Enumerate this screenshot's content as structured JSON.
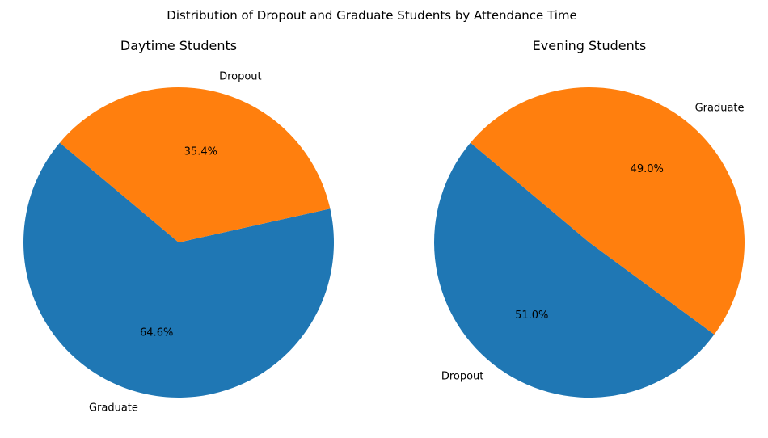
{
  "colors": {
    "blue": "#1f77b4",
    "orange": "#ff7f0e"
  },
  "chart_data": {
    "type": "pie",
    "title": "Distribution of Dropout and Graduate Students by Attendance Time",
    "charts": [
      {
        "id": "daytime",
        "title": "Daytime Students",
        "start_angle_deg": 140,
        "slices": [
          {
            "label": "Graduate",
            "percent": 64.6,
            "percent_label": "64.6%",
            "color": "#1f77b4"
          },
          {
            "label": "Dropout",
            "percent": 35.4,
            "percent_label": "35.4%",
            "color": "#ff7f0e"
          }
        ]
      },
      {
        "id": "evening",
        "title": "Evening Students",
        "start_angle_deg": 140,
        "slices": [
          {
            "label": "Dropout",
            "percent": 51.0,
            "percent_label": "51.0%",
            "color": "#1f77b4"
          },
          {
            "label": "Graduate",
            "percent": 49.0,
            "percent_label": "49.0%",
            "color": "#ff7f0e"
          }
        ]
      }
    ]
  }
}
